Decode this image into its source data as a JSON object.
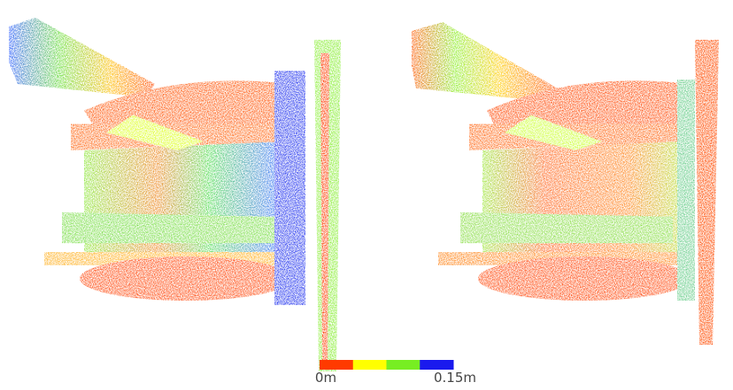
{
  "colorbar": {
    "min_label": "0m",
    "max_label": "0.15m",
    "colors": [
      "#ff3a00",
      "#ffff00",
      "#77ee22",
      "#1a1aee"
    ]
  }
}
